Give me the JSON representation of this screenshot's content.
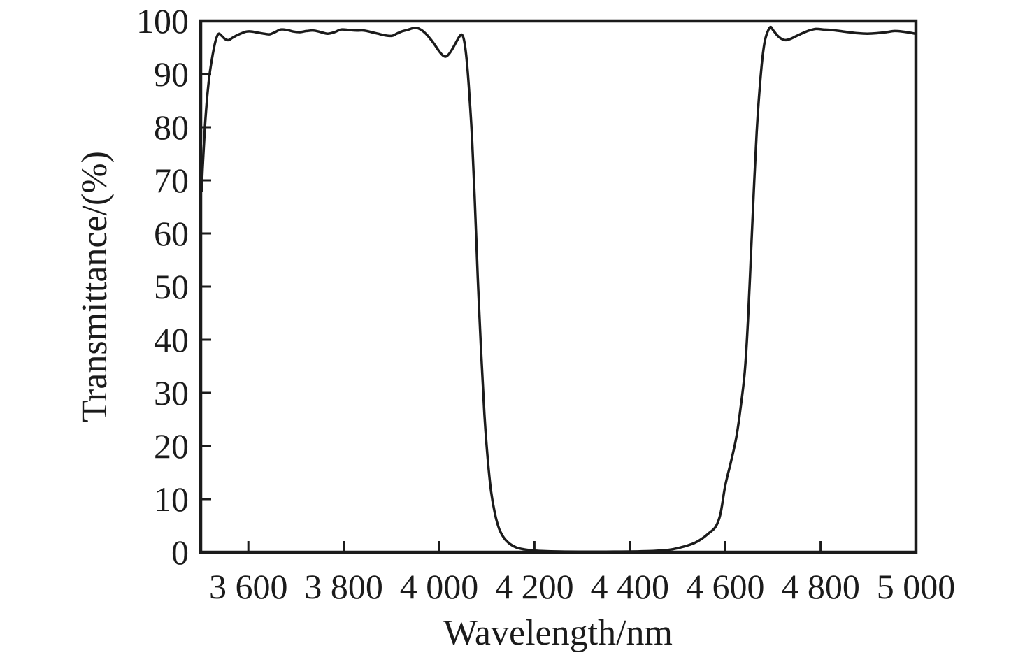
{
  "chart_data": {
    "type": "line",
    "title": "",
    "xlabel": "Wavelength/nm",
    "ylabel": "Transmittance/(%)",
    "xlim": [
      3500,
      5000
    ],
    "ylim": [
      0,
      100
    ],
    "grid": false,
    "legend": "none",
    "line_color": "#1b1b1b",
    "axis_color": "#1b1b1b",
    "background_color": "#ffffff",
    "x_ticks": [
      3600,
      3800,
      4000,
      4200,
      4400,
      4600,
      4800,
      5000
    ],
    "x_tick_labels": [
      "3 600",
      "3 800",
      "4 000",
      "4 200",
      "4 400",
      "4 600",
      "4 800",
      "5 000"
    ],
    "y_ticks": [
      0,
      10,
      20,
      30,
      40,
      50,
      60,
      70,
      80,
      90,
      100
    ],
    "y_tick_labels": [
      "0",
      "10",
      "20",
      "30",
      "40",
      "50",
      "60",
      "70",
      "80",
      "90",
      "100"
    ],
    "series": [
      {
        "name": "transmittance",
        "points": [
          [
            3502,
            68
          ],
          [
            3504,
            72
          ],
          [
            3507,
            77
          ],
          [
            3510,
            81.5
          ],
          [
            3514,
            86
          ],
          [
            3518,
            89.5
          ],
          [
            3523,
            92.5
          ],
          [
            3528,
            95
          ],
          [
            3533,
            96.8
          ],
          [
            3538,
            97.6
          ],
          [
            3544,
            97.2
          ],
          [
            3551,
            96.6
          ],
          [
            3558,
            96.4
          ],
          [
            3566,
            96.8
          ],
          [
            3576,
            97.3
          ],
          [
            3586,
            97.7
          ],
          [
            3596,
            98.0
          ],
          [
            3608,
            98.0
          ],
          [
            3620,
            97.8
          ],
          [
            3633,
            97.6
          ],
          [
            3645,
            97.5
          ],
          [
            3656,
            97.9
          ],
          [
            3668,
            98.4
          ],
          [
            3681,
            98.3
          ],
          [
            3695,
            98.0
          ],
          [
            3708,
            97.9
          ],
          [
            3722,
            98.1
          ],
          [
            3737,
            98.2
          ],
          [
            3752,
            97.9
          ],
          [
            3766,
            97.6
          ],
          [
            3781,
            97.9
          ],
          [
            3795,
            98.4
          ],
          [
            3811,
            98.3
          ],
          [
            3827,
            98.2
          ],
          [
            3843,
            98.2
          ],
          [
            3858,
            97.9
          ],
          [
            3872,
            97.6
          ],
          [
            3886,
            97.3
          ],
          [
            3901,
            97.2
          ],
          [
            3911,
            97.6
          ],
          [
            3921,
            98.0
          ],
          [
            3933,
            98.3
          ],
          [
            3944,
            98.6
          ],
          [
            3952,
            98.7
          ],
          [
            3961,
            98.4
          ],
          [
            3971,
            97.7
          ],
          [
            3981,
            96.7
          ],
          [
            3991,
            95.5
          ],
          [
            4001,
            94.2
          ],
          [
            4008,
            93.5
          ],
          [
            4014,
            93.3
          ],
          [
            4020,
            93.7
          ],
          [
            4027,
            94.6
          ],
          [
            4035,
            95.9
          ],
          [
            4043,
            97.1
          ],
          [
            4048,
            97.4
          ],
          [
            4052,
            96.5
          ],
          [
            4056,
            94.2
          ],
          [
            4060,
            90.5
          ],
          [
            4064,
            85.5
          ],
          [
            4069,
            78
          ],
          [
            4075,
            66
          ],
          [
            4081,
            52
          ],
          [
            4088,
            38
          ],
          [
            4095,
            26
          ],
          [
            4102,
            17.5
          ],
          [
            4109,
            11.5
          ],
          [
            4117,
            7.3
          ],
          [
            4126,
            4.4
          ],
          [
            4136,
            2.7
          ],
          [
            4148,
            1.6
          ],
          [
            4162,
            0.9
          ],
          [
            4178,
            0.55
          ],
          [
            4195,
            0.35
          ],
          [
            4215,
            0.22
          ],
          [
            4255,
            0.13
          ],
          [
            4300,
            0.1
          ],
          [
            4350,
            0.1
          ],
          [
            4400,
            0.13
          ],
          [
            4435,
            0.2
          ],
          [
            4460,
            0.3
          ],
          [
            4485,
            0.5
          ],
          [
            4506,
            0.9
          ],
          [
            4522,
            1.3
          ],
          [
            4537,
            1.8
          ],
          [
            4552,
            2.6
          ],
          [
            4566,
            3.6
          ],
          [
            4580,
            4.8
          ],
          [
            4590,
            7.2
          ],
          [
            4600,
            12.5
          ],
          [
            4612,
            17
          ],
          [
            4623,
            21.5
          ],
          [
            4632,
            27
          ],
          [
            4641,
            34
          ],
          [
            4648,
            44
          ],
          [
            4654,
            56
          ],
          [
            4660,
            68
          ],
          [
            4666,
            79
          ],
          [
            4672,
            87
          ],
          [
            4678,
            93
          ],
          [
            4684,
            96.6
          ],
          [
            4694,
            98.8
          ],
          [
            4701,
            98.2
          ],
          [
            4709,
            97.3
          ],
          [
            4717,
            96.7
          ],
          [
            4726,
            96.4
          ],
          [
            4736,
            96.6
          ],
          [
            4748,
            97.1
          ],
          [
            4762,
            97.7
          ],
          [
            4776,
            98.2
          ],
          [
            4790,
            98.5
          ],
          [
            4806,
            98.4
          ],
          [
            4822,
            98.3
          ],
          [
            4840,
            98.1
          ],
          [
            4858,
            97.9
          ],
          [
            4878,
            97.7
          ],
          [
            4898,
            97.6
          ],
          [
            4918,
            97.7
          ],
          [
            4938,
            97.9
          ],
          [
            4955,
            98.1
          ],
          [
            4972,
            98.0
          ],
          [
            4987,
            97.8
          ],
          [
            4998,
            97.6
          ]
        ]
      }
    ]
  }
}
